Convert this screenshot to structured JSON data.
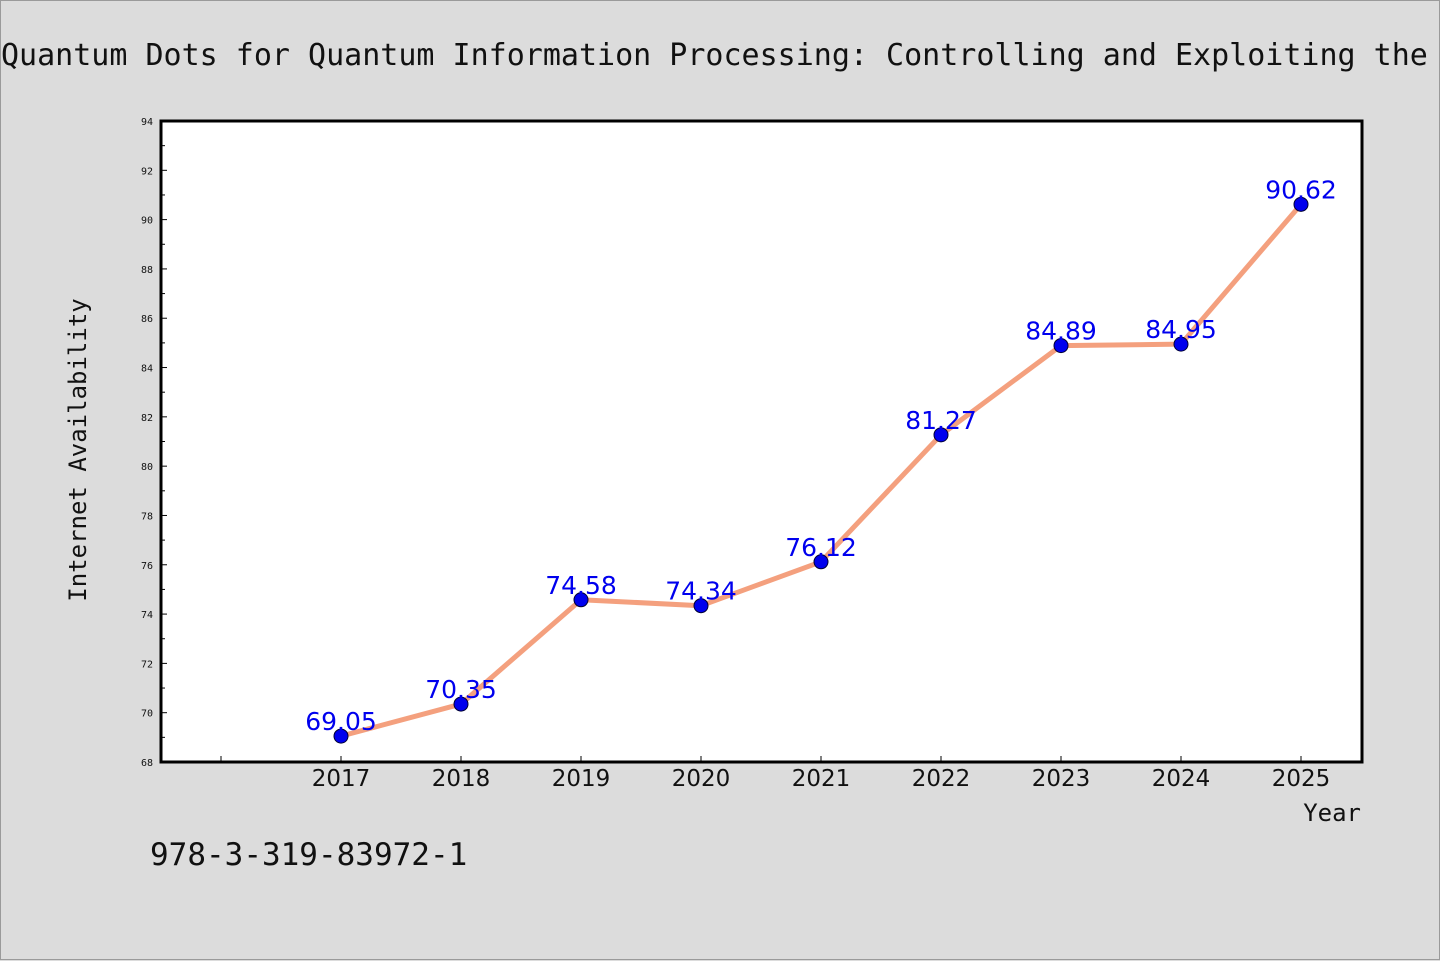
{
  "chart_data": {
    "type": "line",
    "title": "Quantum Dots for Quantum Information Processing: Controlling and Exploiting the",
    "xlabel": "Year",
    "ylabel": "Internet Availability",
    "categories": [
      "2017",
      "2018",
      "2019",
      "2020",
      "2021",
      "2022",
      "2023",
      "2024",
      "2025"
    ],
    "values": [
      69.05,
      70.35,
      74.58,
      74.34,
      76.12,
      81.27,
      84.89,
      84.95,
      90.62
    ],
    "data_labels": [
      "69.05",
      "70.35",
      "74.58",
      "74.34",
      "76.12",
      "81.27",
      "84.89",
      "84.95",
      "90.62"
    ],
    "ylim": [
      68,
      94
    ],
    "yticks": [
      "68",
      "70",
      "72",
      "74",
      "76",
      "78",
      "80",
      "82",
      "84",
      "86",
      "88",
      "90",
      "92",
      "94"
    ],
    "grid": false,
    "legend": "none",
    "line_color": "#f4a07e",
    "marker_color": "#0000ee",
    "label_color": "#0000ee"
  },
  "footnote": "978-3-319-83972-1"
}
